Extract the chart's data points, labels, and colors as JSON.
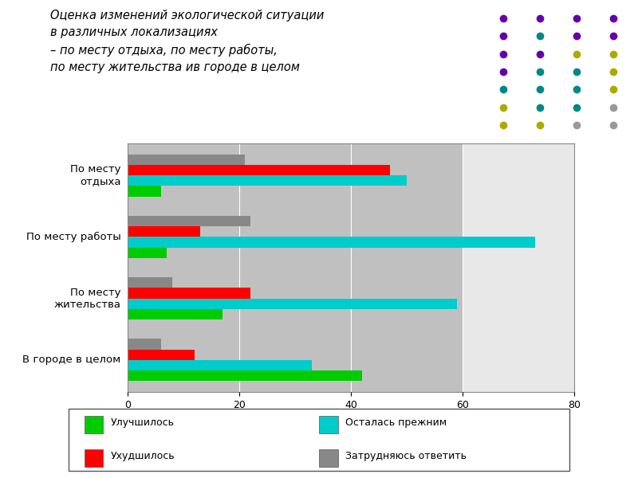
{
  "title_line1": "Оценка изменений экологической ситуации",
  "title_line2": "в различных локализациях",
  "title_line3": "– по месту отдыха, по месту работы,",
  "title_line4": "по месту жительства ив городе в целом",
  "categories": [
    "По месту\nотдыха",
    "По месту работы",
    "По месту\nжительства",
    "В городе в целом"
  ],
  "series_order": [
    "Затрудняюсь ответить",
    "Ухудшилось",
    "Осталась прежним",
    "Улучшилось"
  ],
  "series": {
    "Улучшилось": [
      6,
      7,
      17,
      42
    ],
    "Осталась прежним": [
      50,
      73,
      59,
      33
    ],
    "Ухудшилось": [
      47,
      13,
      22,
      12
    ],
    "Затрудняюсь ответить": [
      21,
      22,
      8,
      6
    ]
  },
  "colors": {
    "Улучшилось": "#00CC00",
    "Осталась прежним": "#00CCCC",
    "Ухудшилось": "#FF0000",
    "Затрудняюсь ответить": "#888888"
  },
  "xlim": [
    0,
    80
  ],
  "xticks": [
    0,
    20,
    40,
    60,
    80
  ],
  "background_color": "#C0C0C0",
  "right_bg_color": "#E8E8E8",
  "fig_bg_color": "#FFFFFF",
  "bar_height": 0.17,
  "dot_colors": [
    [
      "#6600AA",
      "#6600AA",
      "#6600AA",
      "#6600AA"
    ],
    [
      "#6600AA",
      "#008888",
      "#6600AA",
      "#6600AA"
    ],
    [
      "#6600AA",
      "#6600AA",
      "#AAAA00",
      "#AAAA00"
    ],
    [
      "#6600AA",
      "#008888",
      "#008888",
      "#AAAA00"
    ],
    [
      "#008888",
      "#008888",
      "#008888",
      "#AAAA00"
    ],
    [
      "#AAAA00",
      "#008888",
      "#008888",
      "#999999"
    ],
    [
      "#AAAA00",
      "#AAAA00",
      "#999999",
      "#999999"
    ]
  ]
}
